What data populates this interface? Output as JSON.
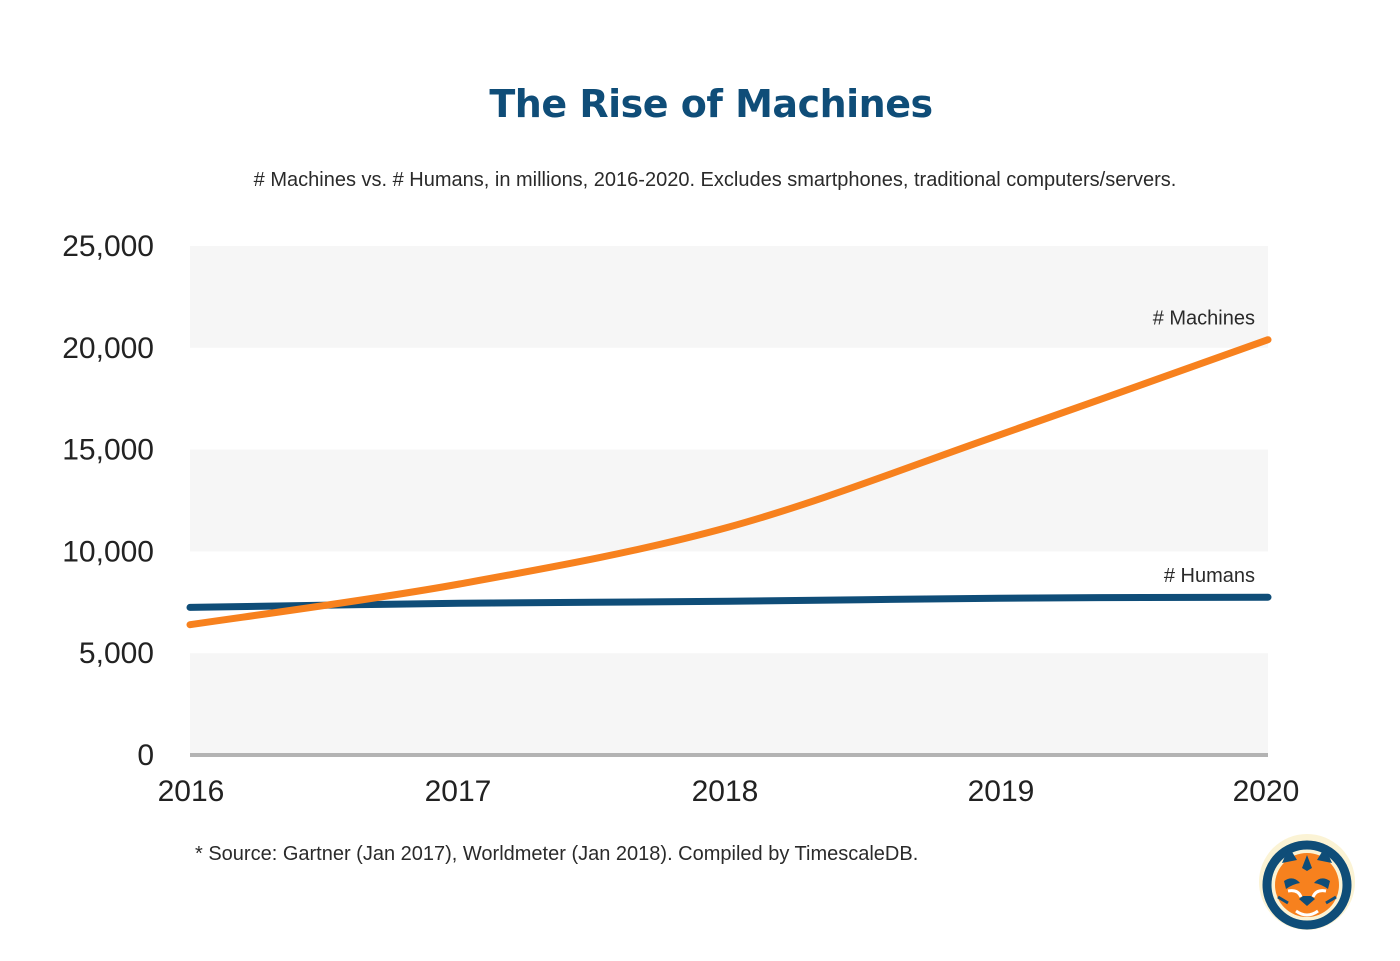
{
  "chart_data": {
    "type": "line",
    "title": "The Rise of Machines",
    "subtitle": "# Machines vs. # Humans, in millions, 2016-2020. Excludes smartphones, traditional computers/servers.",
    "xlabel": "",
    "ylabel": "",
    "x": [
      2016,
      2017,
      2018,
      2019,
      2020
    ],
    "xlim": [
      2016,
      2020
    ],
    "ylim": [
      0,
      25000
    ],
    "yticks": [
      0,
      5000,
      10000,
      15000,
      20000,
      25000
    ],
    "ytick_labels": [
      "0",
      "5,000",
      "10,000",
      "15,000",
      "20,000",
      "25,000"
    ],
    "xtick_labels": [
      "2016",
      "2017",
      "2018",
      "2019",
      "2020"
    ],
    "grid": "alternating horizontal bands",
    "legend": "inline labels at right end of lines",
    "series": [
      {
        "name": "# Machines",
        "color": "#f7811e",
        "values": [
          6400,
          8400,
          11200,
          15700,
          20400
        ]
      },
      {
        "name": "# Humans",
        "color": "#0f4d78",
        "values": [
          7250,
          7450,
          7550,
          7700,
          7750
        ]
      }
    ],
    "source_note": "* Source: Gartner (Jan 2017), Worldmeter (Jan 2018). Compiled by TimescaleDB."
  },
  "colors": {
    "title": "#0f4d78",
    "band": "#f6f6f6",
    "axis": "#b3b3b3",
    "logo_orange": "#f7811e",
    "logo_navy": "#0f4d78",
    "logo_bg": "#fbf3d5"
  },
  "logo": {
    "icon": "tiger-head-icon"
  }
}
